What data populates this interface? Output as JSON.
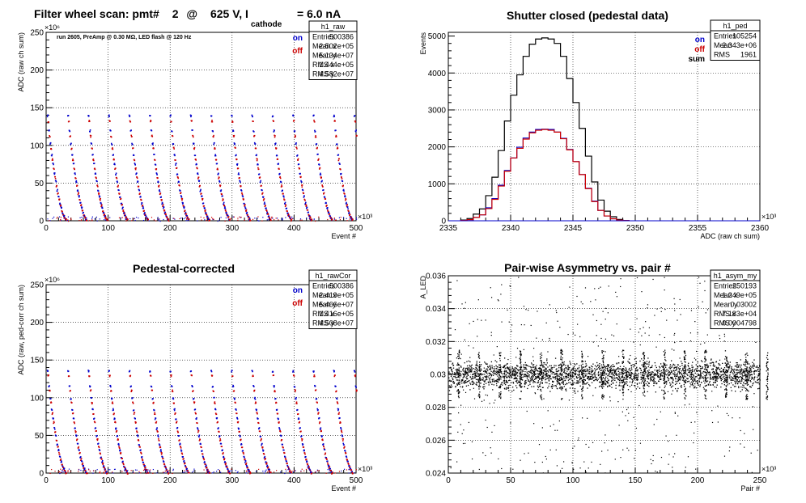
{
  "colors": {
    "on": "#0000cc",
    "off": "#cc0000",
    "sum": "#000000"
  },
  "panels": {
    "raw": {
      "title_prefix": "Filter wheel scan: pmt#",
      "title_pmt": "2",
      "title_at": "@",
      "title_voltage": "625 V, I",
      "title_sub": "cathode",
      "title_current": "= 6.0 nA",
      "note": "run 2605, PreAmp @ 0.30 MΩ, LED flash @  120 Hz",
      "legend": [
        "on",
        "off"
      ],
      "stats": {
        "name": "h1_raw",
        "rows": [
          [
            "Entries",
            "500386"
          ],
          [
            "Mean x",
            "2.502e+05"
          ],
          [
            "Mean y",
            "5.134e+07"
          ],
          [
            "RMS x",
            "1.444e+05"
          ],
          [
            "RMS y",
            "4.582e+07"
          ]
        ]
      }
    },
    "ped": {
      "title": "Shutter closed (pedestal data)",
      "legend": [
        "on",
        "off",
        "sum"
      ],
      "stats": {
        "name": "h1_ped",
        "rows": [
          [
            "Entries",
            "105254"
          ],
          [
            "Mean",
            "2.343e+06"
          ],
          [
            "RMS",
            "1961"
          ]
        ]
      }
    },
    "cor": {
      "title": "Pedestal-corrected",
      "legend": [
        "on",
        "off"
      ],
      "stats": {
        "name": "h1_rawCor",
        "rows": [
          [
            "Entries",
            "500386"
          ],
          [
            "Mean x",
            "2.419e+05"
          ],
          [
            "Mean y",
            "5.466e+07"
          ],
          [
            "RMS x",
            "1.416e+05"
          ],
          [
            "RMS y",
            "4.508e+07"
          ]
        ]
      }
    },
    "asym": {
      "title": "Pair-wise Asymmetry vs. pair #",
      "stats": {
        "name": "h1_asym_my",
        "rows": [
          [
            "Entries",
            "250193"
          ],
          [
            "Mean x",
            "1.249e+05"
          ],
          [
            "Mean y",
            "0.03002"
          ],
          [
            "RMS x",
            "7.183e+04"
          ],
          [
            "RMS y",
            "0.0004798"
          ]
        ]
      }
    }
  },
  "chart_data": [
    {
      "type": "scatter",
      "id": "raw",
      "title": "Filter wheel scan: pmt#   2 @   625 V, I cathode = 6.0 nA",
      "xlabel": "Event #",
      "ylabel": "ADC (raw ch sum)",
      "x_multiplier": "×10³",
      "y_multiplier": "×10⁶",
      "xlim": [
        0,
        500
      ],
      "ylim": [
        0,
        250
      ],
      "xticks": [
        0,
        100,
        200,
        300,
        400,
        500
      ],
      "yticks": [
        0,
        50,
        100,
        150,
        200,
        250
      ],
      "grid": true,
      "legend_position": "top-right",
      "cycle_period": 33,
      "step_width": 3.5,
      "series": [
        {
          "name": "on",
          "levels": [
            140,
            120,
            103,
            88,
            76,
            63,
            53,
            41,
            33,
            24,
            18,
            11,
            7,
            3
          ]
        },
        {
          "name": "off",
          "levels": [
            133,
            113,
            97,
            82,
            70,
            58,
            47,
            37,
            29,
            21,
            14,
            9,
            5,
            2
          ]
        }
      ]
    },
    {
      "type": "line",
      "id": "ped",
      "title": "Shutter closed (pedestal data)",
      "xlabel": "ADC (raw ch sum)",
      "ylabel": "Events",
      "x_multiplier": "×10³",
      "xlim": [
        2335,
        2360
      ],
      "ylim": [
        0,
        5100
      ],
      "xticks": [
        2335,
        2340,
        2345,
        2350,
        2355,
        2360
      ],
      "yticks": [
        0,
        1000,
        2000,
        3000,
        4000,
        5000
      ],
      "grid": true,
      "legend_position": "top-right",
      "bin_centers": [
        2336.25,
        2336.75,
        2337.25,
        2337.75,
        2338.25,
        2338.75,
        2339.25,
        2339.75,
        2340.25,
        2340.75,
        2341.25,
        2341.75,
        2342.25,
        2342.75,
        2343.25,
        2343.75,
        2344.25,
        2344.75,
        2345.25,
        2345.75,
        2346.25,
        2346.75,
        2347.25,
        2347.75,
        2348.25,
        2348.75,
        2349.25
      ],
      "series": [
        {
          "name": "sum",
          "values": [
            20,
            60,
            180,
            320,
            680,
            1180,
            1900,
            2700,
            3400,
            3950,
            4450,
            4780,
            4920,
            4950,
            4920,
            4800,
            4450,
            3850,
            3200,
            2500,
            1750,
            1050,
            560,
            260,
            110,
            35,
            10
          ]
        },
        {
          "name": "on",
          "values": [
            10,
            30,
            90,
            160,
            350,
            600,
            960,
            1360,
            1700,
            1990,
            2240,
            2400,
            2470,
            2480,
            2470,
            2400,
            2230,
            1930,
            1600,
            1250,
            880,
            530,
            280,
            130,
            55,
            18,
            5
          ]
        },
        {
          "name": "off",
          "values": [
            10,
            30,
            90,
            160,
            330,
            580,
            940,
            1340,
            1700,
            1960,
            2210,
            2380,
            2450,
            2470,
            2450,
            2400,
            2220,
            1920,
            1600,
            1250,
            870,
            520,
            280,
            130,
            55,
            17,
            5
          ]
        }
      ]
    },
    {
      "type": "scatter",
      "id": "cor",
      "title": "Pedestal-corrected",
      "xlabel": "Event #",
      "ylabel": "ADC (raw, ped-corr ch sum)",
      "x_multiplier": "×10³",
      "y_multiplier": "×10⁶",
      "xlim": [
        0,
        500
      ],
      "ylim": [
        0,
        250
      ],
      "xticks": [
        0,
        100,
        200,
        300,
        400,
        500
      ],
      "yticks": [
        0,
        50,
        100,
        150,
        200,
        250
      ],
      "grid": true,
      "legend_position": "top-right",
      "cycle_period": 33,
      "step_width": 3.5,
      "series": [
        {
          "name": "on",
          "levels": [
            136,
            116,
            100,
            85,
            73,
            60,
            50,
            39,
            31,
            22,
            16,
            10,
            6,
            2
          ]
        },
        {
          "name": "off",
          "levels": [
            130,
            110,
            94,
            80,
            68,
            56,
            45,
            35,
            27,
            19,
            13,
            8,
            4,
            1
          ]
        }
      ]
    },
    {
      "type": "scatter",
      "id": "asym",
      "title": "Pair-wise Asymmetry vs. pair #",
      "xlabel": "Pair #",
      "ylabel": "A_LED",
      "x_multiplier": "×10³",
      "xlim": [
        0,
        250
      ],
      "ylim": [
        0.024,
        0.036
      ],
      "xticks": [
        0,
        50,
        100,
        150,
        200,
        250
      ],
      "yticks": [
        0.024,
        0.026,
        0.028,
        0.03,
        0.032,
        0.034,
        0.036
      ],
      "grid": true,
      "band_center": 0.03,
      "band_halfwidth": 0.0006,
      "spike_period": 16.5,
      "spike_amplitude": 0.0015
    }
  ]
}
